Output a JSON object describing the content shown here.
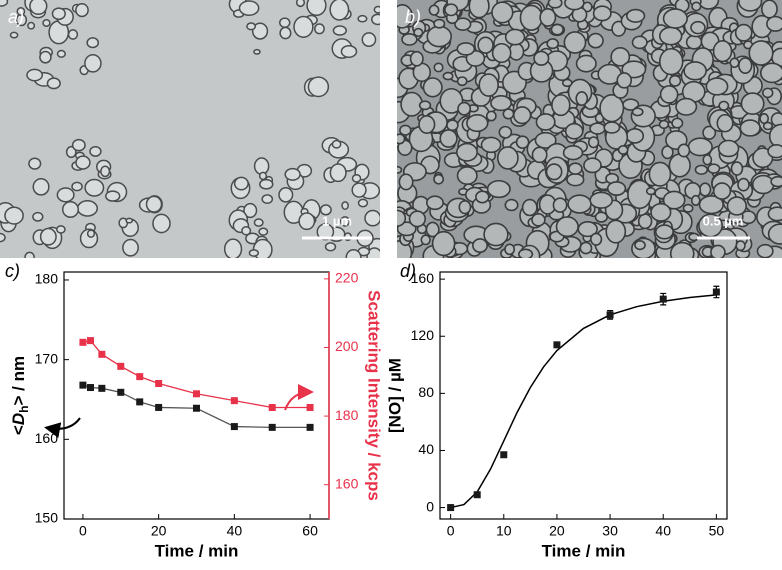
{
  "panels": [
    {
      "label": "a)",
      "scale_bar": "1 µm"
    },
    {
      "label": "b)",
      "scale_bar": "0.5 µm"
    }
  ],
  "chart_data": [
    {
      "type": "line",
      "panel_label": "c)",
      "x_label": "Time / min",
      "y_label": {
        "pre": "<",
        "var": "D",
        "sub": "h",
        "post": "> / nm"
      },
      "y2_label": "Scattering Intensity / kcps",
      "y2_color": "#e8324a",
      "x": [
        0,
        2,
        5,
        10,
        15,
        20,
        30,
        40,
        50,
        60
      ],
      "series": [
        {
          "color": "#1a1a1a",
          "line_color": "#555555",
          "axis": "y",
          "values": [
            166.8,
            166.5,
            166.4,
            165.9,
            164.7,
            164.0,
            163.9,
            161.6,
            161.5,
            161.5
          ]
        },
        {
          "color": "#e8324a",
          "line_color": "#e8324a",
          "axis": "y2",
          "values": [
            201.5,
            202,
            198,
            194.5,
            191.5,
            189.5,
            186.5,
            184.5,
            182.5,
            182.5
          ]
        }
      ],
      "xlim": [
        -5,
        65
      ],
      "xticks": [
        0,
        20,
        40,
        60
      ],
      "ylim": [
        150,
        181
      ],
      "yticks": [
        150,
        160,
        170,
        180
      ],
      "y2lim": [
        150,
        222
      ],
      "y2ticks": [
        160,
        180,
        200,
        220
      ]
    },
    {
      "type": "scatter",
      "panel_label": "d)",
      "x_label": "Time / min",
      "y_label": "[NO] / µM",
      "x": [
        0,
        5,
        10,
        20,
        30,
        40,
        50
      ],
      "values": [
        0,
        9,
        37,
        114,
        135,
        146,
        151
      ],
      "errors": [
        null,
        null,
        null,
        null,
        3,
        4,
        4
      ],
      "color": "#1a1a1a",
      "fit": {
        "x": [
          0,
          2.5,
          5,
          7.5,
          10,
          12.5,
          15,
          17.5,
          20,
          25,
          30,
          35,
          40,
          45,
          50
        ],
        "values": [
          0,
          2.1,
          11,
          26.9,
          46.7,
          66.6,
          84.1,
          98.6,
          110,
          125.5,
          135,
          140.7,
          144.5,
          147.1,
          149
        ]
      },
      "xlim": [
        -2,
        52
      ],
      "xticks": [
        0,
        10,
        20,
        30,
        40,
        50
      ],
      "ylim": [
        -8,
        165
      ],
      "yticks": [
        0,
        40,
        80,
        120,
        160
      ]
    }
  ]
}
